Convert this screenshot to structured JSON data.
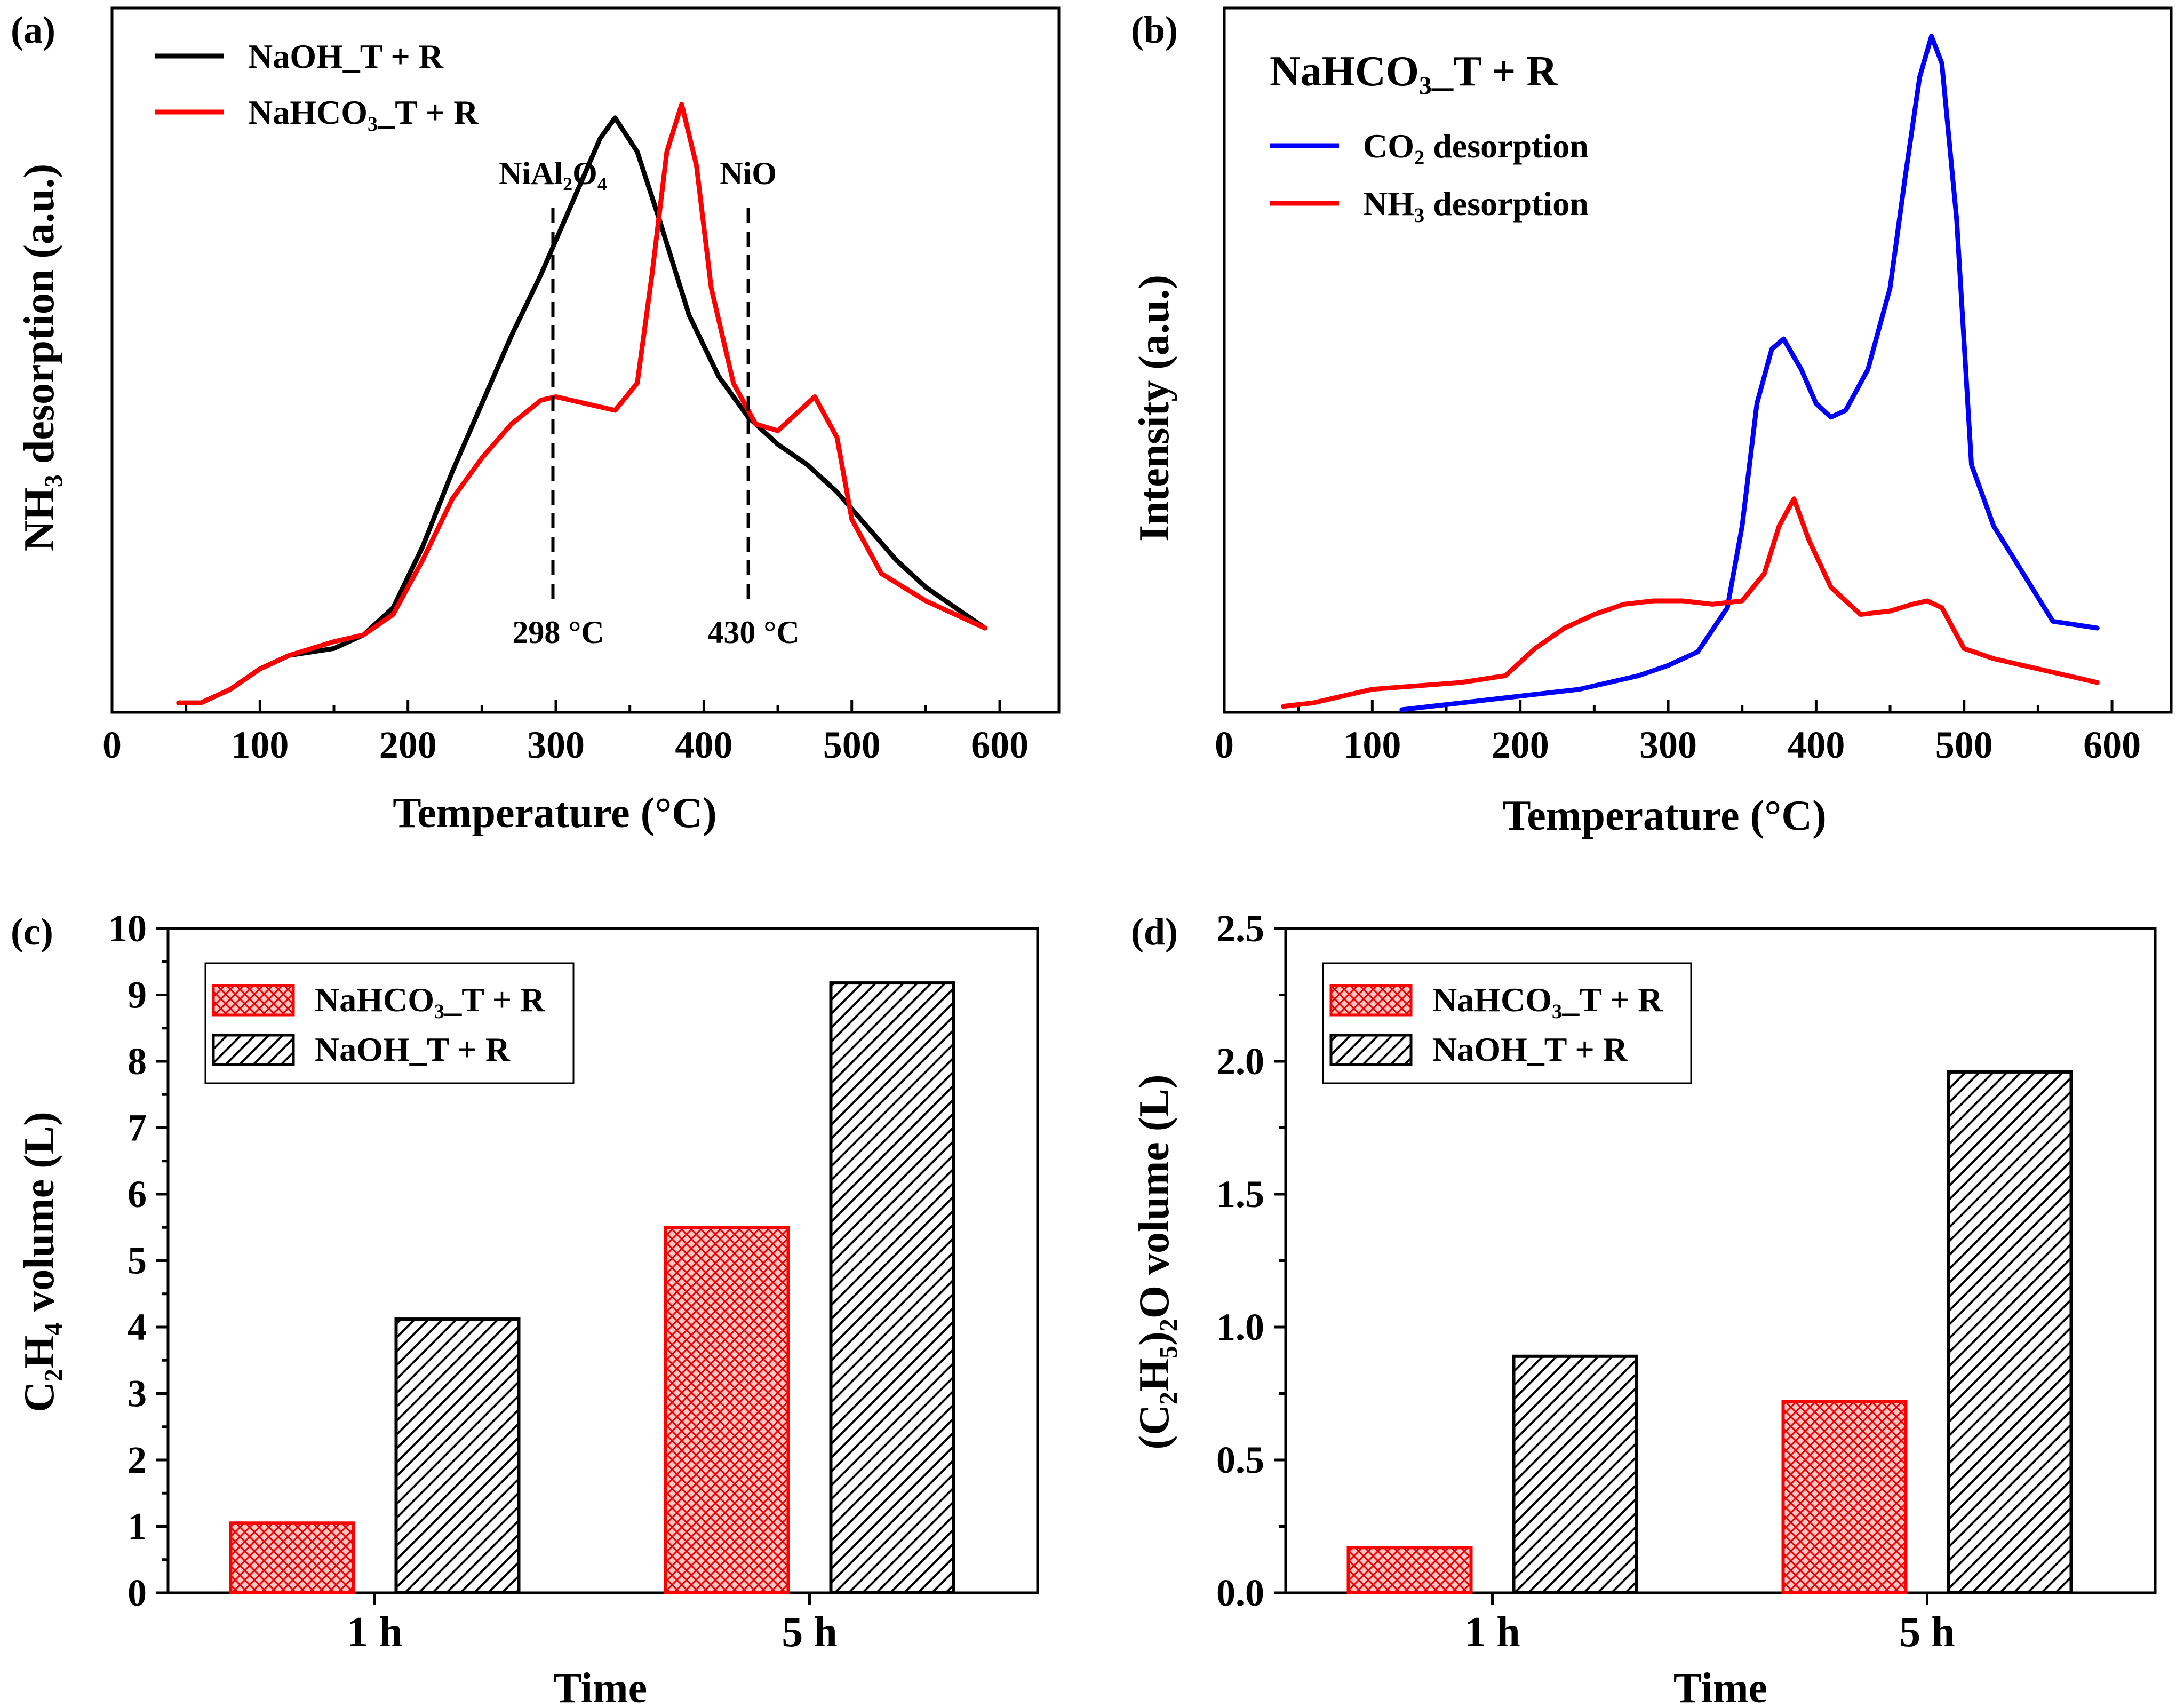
{
  "chart_data": [
    {
      "panel": "(a)",
      "type": "line",
      "xlabel": "Temperature (°C)",
      "ylabel": "NH₃ desorption (a.u.)",
      "xlim": [
        0,
        640
      ],
      "ylim": [
        0,
        1
      ],
      "x_ticks": [
        0,
        100,
        200,
        300,
        400,
        500,
        600
      ],
      "legend": {
        "position": "top-left"
      },
      "series": [
        {
          "name": "NaOH_T + R",
          "color": "#000000",
          "x": [
            45,
            60,
            80,
            100,
            120,
            150,
            170,
            190,
            210,
            230,
            250,
            270,
            290,
            310,
            330,
            340,
            355,
            370,
            390,
            410,
            430,
            450,
            470,
            490,
            510,
            530,
            550,
            570,
            590
          ],
          "y": [
            0.01,
            0.01,
            0.03,
            0.06,
            0.08,
            0.09,
            0.11,
            0.15,
            0.24,
            0.35,
            0.45,
            0.55,
            0.64,
            0.74,
            0.84,
            0.87,
            0.82,
            0.72,
            0.58,
            0.49,
            0.43,
            0.39,
            0.36,
            0.32,
            0.27,
            0.22,
            0.18,
            0.15,
            0.12
          ]
        },
        {
          "name": "NaHCO₃_T + R",
          "color": "#ff0000",
          "x": [
            45,
            60,
            80,
            100,
            120,
            150,
            170,
            190,
            210,
            230,
            250,
            270,
            290,
            300,
            320,
            340,
            355,
            365,
            375,
            385,
            395,
            405,
            420,
            435,
            450,
            465,
            475,
            490,
            500,
            520,
            550,
            570,
            590
          ],
          "y": [
            0.01,
            0.01,
            0.03,
            0.06,
            0.08,
            0.1,
            0.11,
            0.14,
            0.22,
            0.31,
            0.37,
            0.42,
            0.455,
            0.46,
            0.45,
            0.44,
            0.48,
            0.64,
            0.82,
            0.89,
            0.8,
            0.62,
            0.48,
            0.42,
            0.41,
            0.44,
            0.46,
            0.4,
            0.28,
            0.2,
            0.16,
            0.14,
            0.12
          ]
        }
      ],
      "annotations": [
        {
          "label": "NiAl₂O₄",
          "x": 298,
          "temp_label": "298 °C"
        },
        {
          "label": "NiO",
          "x": 430,
          "temp_label": "430 °C"
        }
      ]
    },
    {
      "panel": "(b)",
      "type": "line",
      "title": "NaHCO₃_T + R",
      "xlabel": "Temperature (°C)",
      "ylabel": "Intensity (a.u.)",
      "xlim": [
        0,
        640
      ],
      "ylim": [
        0,
        1
      ],
      "x_ticks": [
        0,
        100,
        200,
        300,
        400,
        500,
        600
      ],
      "legend": {
        "position": "top-left"
      },
      "series": [
        {
          "name": "CO₂ desorption",
          "color": "#0000ff",
          "x": [
            120,
            140,
            160,
            180,
            200,
            220,
            240,
            260,
            280,
            300,
            320,
            340,
            350,
            360,
            370,
            378,
            390,
            400,
            410,
            420,
            435,
            450,
            460,
            470,
            478,
            485,
            495,
            505,
            520,
            540,
            560,
            590
          ],
          "y": [
            0.0,
            0.005,
            0.01,
            0.015,
            0.02,
            0.025,
            0.03,
            0.04,
            0.05,
            0.065,
            0.085,
            0.15,
            0.27,
            0.45,
            0.53,
            0.545,
            0.5,
            0.45,
            0.43,
            0.44,
            0.5,
            0.62,
            0.78,
            0.93,
            0.99,
            0.95,
            0.72,
            0.36,
            0.27,
            0.2,
            0.13,
            0.12
          ]
        },
        {
          "name": "NH₃ desorption",
          "color": "#ff0000",
          "x": [
            40,
            60,
            80,
            100,
            130,
            160,
            190,
            210,
            230,
            250,
            270,
            290,
            310,
            330,
            350,
            365,
            375,
            385,
            395,
            410,
            430,
            450,
            465,
            475,
            485,
            500,
            520,
            550,
            570,
            590
          ],
          "y": [
            0.005,
            0.01,
            0.02,
            0.03,
            0.035,
            0.04,
            0.05,
            0.09,
            0.12,
            0.14,
            0.155,
            0.16,
            0.16,
            0.155,
            0.16,
            0.2,
            0.27,
            0.31,
            0.25,
            0.18,
            0.14,
            0.145,
            0.155,
            0.16,
            0.15,
            0.09,
            0.075,
            0.06,
            0.05,
            0.04
          ]
        }
      ]
    },
    {
      "panel": "(c)",
      "type": "bar",
      "xlabel": "Time",
      "ylabel": "C₂H₄ volume (L)",
      "categories": [
        "1 h",
        "5 h"
      ],
      "ylim": [
        0,
        10
      ],
      "y_ticks": [
        "0",
        "1",
        "2",
        "3",
        "4",
        "5",
        "6",
        "7",
        "8",
        "9",
        "10"
      ],
      "legend": {
        "position": "top-left"
      },
      "series": [
        {
          "name": "NaHCO₃_T + R",
          "color": "#ff0000",
          "values": [
            1.05,
            5.5
          ]
        },
        {
          "name": "NaOH_T + R",
          "color": "#000000",
          "values": [
            4.12,
            9.18
          ]
        }
      ]
    },
    {
      "panel": "(d)",
      "type": "bar",
      "xlabel": "Time",
      "ylabel": "(C₂H₅)₂O volume (L)",
      "categories": [
        "1 h",
        "5 h"
      ],
      "ylim": [
        0,
        2.5
      ],
      "y_ticks": [
        "0.0",
        "0.5",
        "1.0",
        "1.5",
        "2.0",
        "2.5"
      ],
      "legend": {
        "position": "top-left"
      },
      "series": [
        {
          "name": "NaHCO₃_T + R",
          "color": "#ff0000",
          "values": [
            0.17,
            0.72
          ]
        },
        {
          "name": "NaOH_T + R",
          "color": "#000000",
          "values": [
            0.89,
            1.96
          ]
        }
      ]
    }
  ]
}
